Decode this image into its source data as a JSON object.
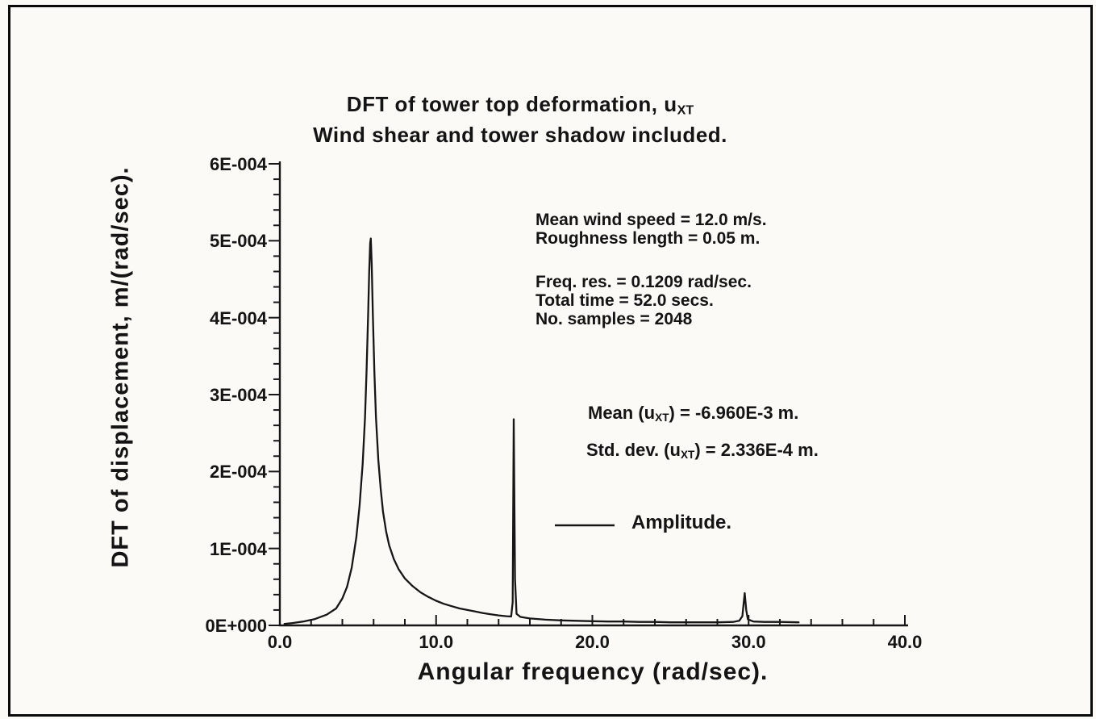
{
  "figure": {
    "title": {
      "pre": "DFT of tower top deformation, u",
      "sub": "XT",
      "line2": "Wind shear and tower shadow included."
    },
    "x_axis_label": "Angular frequency (rad/sec).",
    "y_axis_label": "DFT of displacement, m/(rad/sec).",
    "annotations": {
      "wind_line1": "Mean wind speed = 12.0 m/s.",
      "wind_line2": "Roughness length = 0.05 m.",
      "freq_line1": "Freq. res. = 0.1209 rad/sec.",
      "freq_line2": "Total time = 52.0 secs.",
      "freq_line3": "No. samples = 2048",
      "mean_pre": "Mean (u",
      "mean_sub": "XT",
      "mean_post": ") = -6.960E-3 m.",
      "std_pre": "Std. dev. (u",
      "std_sub": "XT",
      "std_post": ") = 2.336E-4 m."
    },
    "legend": {
      "label": "Amplitude."
    }
  },
  "chart_data": {
    "type": "line",
    "title": "DFT of tower top deformation, u_XT",
    "subtitle": "Wind shear and tower shadow included.",
    "xlabel": "Angular frequency (rad/sec).",
    "ylabel": "DFT of displacement, m/(rad/sec).",
    "xlim": [
      0,
      40
    ],
    "ylim": [
      0,
      0.0006
    ],
    "grid": false,
    "legend_position": "center-right",
    "line_color": "#161616",
    "x_ticks": [
      {
        "value": 0,
        "label": "0.0"
      },
      {
        "value": 10,
        "label": "10.0"
      },
      {
        "value": 20,
        "label": "20.0"
      },
      {
        "value": 30,
        "label": "30.0"
      },
      {
        "value": 40,
        "label": "40.0"
      }
    ],
    "y_ticks": [
      {
        "value": 0.0,
        "label": "0E+000"
      },
      {
        "value": 0.0001,
        "label": "1E-004"
      },
      {
        "value": 0.0002,
        "label": "2E-004"
      },
      {
        "value": 0.0003,
        "label": "3E-004"
      },
      {
        "value": 0.0004,
        "label": "4E-004"
      },
      {
        "value": 0.0005,
        "label": "5E-004"
      },
      {
        "value": 0.0006,
        "label": "6E-004"
      }
    ],
    "x_minor_step": 2,
    "y_minor_step": 2e-05,
    "annotations": [
      "Mean wind speed = 12.0 m/s.",
      "Roughness length = 0.05 m.",
      "Freq. res. = 0.1209 rad/sec.",
      "Total time = 52.0 secs.",
      "No. samples = 2048",
      "Mean (u_XT) = -6.960E-3 m.",
      "Std. dev. (u_XT) = 2.336E-4 m."
    ],
    "series": [
      {
        "name": "Amplitude.",
        "points": [
          [
            0.3,
            2e-06
          ],
          [
            0.8,
            3e-06
          ],
          [
            1.5,
            5e-06
          ],
          [
            2.2,
            8e-06
          ],
          [
            3.0,
            1.4e-05
          ],
          [
            3.6,
            2.2e-05
          ],
          [
            4.0,
            3.5e-05
          ],
          [
            4.3,
            5e-05
          ],
          [
            4.6,
            7.5e-05
          ],
          [
            4.9,
            0.000115
          ],
          [
            5.1,
            0.000155
          ],
          [
            5.3,
            0.00021
          ],
          [
            5.45,
            0.00027
          ],
          [
            5.55,
            0.00033
          ],
          [
            5.65,
            0.000405
          ],
          [
            5.72,
            0.00046
          ],
          [
            5.78,
            0.000497
          ],
          [
            5.82,
            0.000503
          ],
          [
            5.88,
            0.00047
          ],
          [
            5.95,
            0.000405
          ],
          [
            6.05,
            0.00033
          ],
          [
            6.15,
            0.00027
          ],
          [
            6.3,
            0.000215
          ],
          [
            6.45,
            0.000178
          ],
          [
            6.6,
            0.000148
          ],
          [
            6.8,
            0.000122
          ],
          [
            7.0,
            0.000104
          ],
          [
            7.3,
            8.6e-05
          ],
          [
            7.6,
            7.3e-05
          ],
          [
            8.0,
            6.1e-05
          ],
          [
            8.5,
            5.1e-05
          ],
          [
            9.0,
            4.3e-05
          ],
          [
            9.5,
            3.7e-05
          ],
          [
            10.0,
            3.2e-05
          ],
          [
            10.5,
            2.8e-05
          ],
          [
            11.0,
            2.5e-05
          ],
          [
            11.5,
            2.2e-05
          ],
          [
            12.0,
            2e-05
          ],
          [
            12.5,
            1.8e-05
          ],
          [
            13.0,
            1.6e-05
          ],
          [
            13.5,
            1.45e-05
          ],
          [
            14.0,
            1.3e-05
          ],
          [
            14.5,
            1.2e-05
          ],
          [
            14.8,
            1.15e-05
          ],
          [
            14.9,
            3e-05
          ],
          [
            14.97,
            0.000268
          ],
          [
            15.05,
            6e-05
          ],
          [
            15.15,
            1.5e-05
          ],
          [
            15.4,
            1.1e-05
          ],
          [
            16.0,
            9e-06
          ],
          [
            17.0,
            7.5e-06
          ],
          [
            18.0,
            6.5e-06
          ],
          [
            19.0,
            6e-06
          ],
          [
            20.0,
            5.5e-06
          ],
          [
            21.0,
            5e-06
          ],
          [
            22.0,
            5e-06
          ],
          [
            23.0,
            4.5e-06
          ],
          [
            24.0,
            4.5e-06
          ],
          [
            25.0,
            4e-06
          ],
          [
            26.0,
            4e-06
          ],
          [
            27.0,
            4e-06
          ],
          [
            28.0,
            4e-06
          ],
          [
            29.0,
            4.5e-06
          ],
          [
            29.4,
            6e-06
          ],
          [
            29.6,
            1.2e-05
          ],
          [
            29.75,
            4.2e-05
          ],
          [
            29.85,
            2e-05
          ],
          [
            29.95,
            8e-06
          ],
          [
            30.3,
            5e-06
          ],
          [
            31.0,
            4.5e-06
          ],
          [
            32.0,
            4.5e-06
          ],
          [
            33.2,
            4e-06
          ]
        ]
      }
    ]
  }
}
